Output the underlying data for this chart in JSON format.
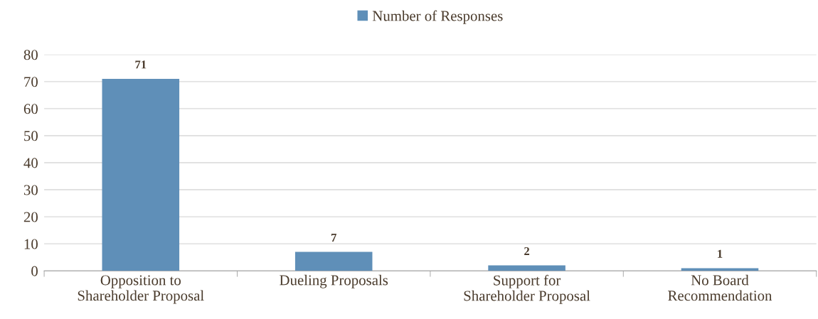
{
  "chart_data": {
    "type": "bar",
    "categories": [
      "Opposition to Shareholder Proposal",
      "Dueling Proposals",
      "Support for Shareholder Proposal",
      "No Board Recommendation"
    ],
    "series": [
      {
        "name": "Number of Responses",
        "color": "#5f8fb8",
        "values": [
          71,
          7,
          2,
          1
        ]
      }
    ],
    "ylim": [
      0,
      80
    ],
    "yticks": [
      0,
      10,
      20,
      30,
      40,
      50,
      60,
      70,
      80
    ],
    "grid": "y",
    "legend": "top",
    "data_labels": true
  }
}
